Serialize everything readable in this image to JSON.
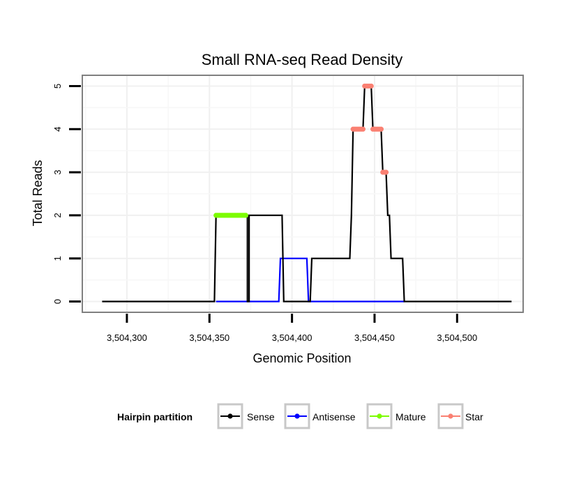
{
  "chart_data": {
    "type": "line",
    "title": "Small RNA-seq Read Density",
    "xlabel": "Genomic Position",
    "ylabel": "Total Reads",
    "xlim": [
      3504273,
      3504540
    ],
    "ylim": [
      -0.25,
      5.25
    ],
    "x_ticks": [
      3504300,
      3504350,
      3504400,
      3504450,
      3504500
    ],
    "x_tick_labels": [
      "3,504,300",
      "3,504,350",
      "3,504,400",
      "3,504,450",
      "3,504,500"
    ],
    "y_ticks": [
      0,
      1,
      2,
      3,
      4,
      5
    ],
    "y_tick_labels": [
      "0",
      "1",
      "2",
      "3",
      "4",
      "5"
    ],
    "grid": true,
    "legend": {
      "title": "Hairpin partition",
      "position": "bottom",
      "entries": [
        {
          "label": "Sense",
          "color": "#000000"
        },
        {
          "label": "Antisense",
          "color": "#0000ff"
        },
        {
          "label": "Mature",
          "color": "#7cfc00"
        },
        {
          "label": "Star",
          "color": "#fa8072"
        }
      ]
    },
    "series": [
      {
        "name": "Sense",
        "color": "#000000",
        "points": [
          [
            3504285,
            0
          ],
          [
            3504353,
            0
          ],
          [
            3504354,
            2
          ],
          [
            3504373,
            2
          ],
          [
            3504373,
            0
          ],
          [
            3504374,
            0
          ],
          [
            3504374,
            2
          ],
          [
            3504394,
            2
          ],
          [
            3504395,
            0
          ],
          [
            3504411,
            0
          ],
          [
            3504412,
            1
          ],
          [
            3504435,
            1
          ],
          [
            3504436,
            2
          ],
          [
            3504437,
            4
          ],
          [
            3504443,
            4
          ],
          [
            3504444,
            5
          ],
          [
            3504448,
            5
          ],
          [
            3504449,
            4
          ],
          [
            3504454,
            4
          ],
          [
            3504455,
            3
          ],
          [
            3504457,
            3
          ],
          [
            3504458,
            2
          ],
          [
            3504459,
            2
          ],
          [
            3504460,
            1
          ],
          [
            3504467,
            1
          ],
          [
            3504468,
            0
          ],
          [
            3504533,
            0
          ]
        ]
      },
      {
        "name": "Antisense",
        "color": "#0000ff",
        "points": [
          [
            3504354,
            0
          ],
          [
            3504392,
            0
          ],
          [
            3504393,
            1
          ],
          [
            3504409,
            1
          ],
          [
            3504410,
            0
          ],
          [
            3504468,
            0
          ]
        ]
      },
      {
        "name": "Mature",
        "color": "#7cfc00",
        "points": [
          [
            3504354,
            2
          ],
          [
            3504355,
            2
          ],
          [
            3504356,
            2
          ],
          [
            3504357,
            2
          ],
          [
            3504358,
            2
          ],
          [
            3504359,
            2
          ],
          [
            3504360,
            2
          ],
          [
            3504361,
            2
          ],
          [
            3504362,
            2
          ],
          [
            3504363,
            2
          ],
          [
            3504364,
            2
          ],
          [
            3504365,
            2
          ],
          [
            3504366,
            2
          ],
          [
            3504367,
            2
          ],
          [
            3504368,
            2
          ],
          [
            3504369,
            2
          ],
          [
            3504370,
            2
          ],
          [
            3504371,
            2
          ],
          [
            3504372,
            2
          ]
        ]
      },
      {
        "name": "Star",
        "color": "#fa8072",
        "points": [
          [
            3504437,
            4
          ],
          [
            3504438,
            4
          ],
          [
            3504439,
            4
          ],
          [
            3504440,
            4
          ],
          [
            3504441,
            4
          ],
          [
            3504442,
            4
          ],
          [
            3504443,
            4
          ],
          [
            3504444,
            5
          ],
          [
            3504445,
            5
          ],
          [
            3504446,
            5
          ],
          [
            3504447,
            5
          ],
          [
            3504448,
            5
          ],
          [
            3504449,
            4
          ],
          [
            3504450,
            4
          ],
          [
            3504451,
            4
          ],
          [
            3504452,
            4
          ],
          [
            3504453,
            4
          ],
          [
            3504454,
            4
          ],
          [
            3504455,
            3
          ],
          [
            3504456,
            3
          ],
          [
            3504457,
            3
          ]
        ]
      }
    ]
  }
}
